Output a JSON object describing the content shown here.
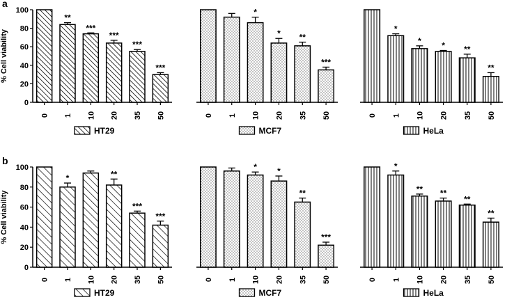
{
  "figure_title": "",
  "chart_data": [
    {
      "type": "bar",
      "panel": "a",
      "legend": "HT29",
      "pattern": "diagonal-dense",
      "show_yaxis": true,
      "ylabel": "% Cell viability",
      "ylim": [
        0,
        100
      ],
      "yticks": [
        0,
        20,
        40,
        60,
        80,
        100
      ],
      "categories": [
        "0",
        "1",
        "10",
        "20",
        "35",
        "50"
      ],
      "values": [
        100,
        84,
        74,
        64,
        55,
        30
      ],
      "errors": [
        0,
        2,
        1,
        3,
        2,
        2
      ],
      "significance": [
        "",
        "**",
        "***",
        "***",
        "***",
        "***"
      ]
    },
    {
      "type": "bar",
      "panel": "a",
      "legend": "MCF7",
      "pattern": "dots",
      "show_yaxis": false,
      "ylim": [
        0,
        100
      ],
      "categories": [
        "0",
        "1",
        "10",
        "20",
        "35",
        "50"
      ],
      "values": [
        100,
        92,
        86,
        64,
        61,
        35
      ],
      "errors": [
        0,
        4,
        6,
        5,
        4,
        3
      ],
      "significance": [
        "",
        "",
        "*",
        "*",
        "**",
        "***"
      ]
    },
    {
      "type": "bar",
      "panel": "a",
      "legend": "HeLa",
      "pattern": "vertical-lines",
      "show_yaxis": false,
      "ylim": [
        0,
        100
      ],
      "categories": [
        "0",
        "1",
        "10",
        "20",
        "35",
        "50"
      ],
      "values": [
        100,
        72,
        58,
        55,
        48,
        28
      ],
      "errors": [
        0,
        2,
        3,
        1,
        4,
        4
      ],
      "significance": [
        "",
        "*",
        "*",
        "*",
        "**",
        "**"
      ]
    },
    {
      "type": "bar",
      "panel": "b",
      "legend": "HT29",
      "pattern": "diagonal-sparse",
      "show_yaxis": true,
      "ylabel": "% Cell viability",
      "ylim": [
        0,
        100
      ],
      "yticks": [
        0,
        20,
        40,
        60,
        80,
        100
      ],
      "categories": [
        "0",
        "1",
        "10",
        "20",
        "35",
        "50"
      ],
      "values": [
        100,
        80,
        94,
        82,
        54,
        42
      ],
      "errors": [
        0,
        4,
        2,
        6,
        2,
        4
      ],
      "significance": [
        "",
        "*",
        "",
        "**",
        "***",
        "***"
      ]
    },
    {
      "type": "bar",
      "panel": "b",
      "legend": "MCF7",
      "pattern": "dots",
      "show_yaxis": false,
      "ylim": [
        0,
        100
      ],
      "categories": [
        "0",
        "1",
        "10",
        "20",
        "35",
        "50"
      ],
      "values": [
        100,
        96,
        92,
        86,
        65,
        22
      ],
      "errors": [
        0,
        3,
        3,
        5,
        4,
        3
      ],
      "significance": [
        "",
        "",
        "*",
        "*",
        "**",
        "***"
      ]
    },
    {
      "type": "bar",
      "panel": "b",
      "legend": "HeLa",
      "pattern": "vertical-lines",
      "show_yaxis": false,
      "ylim": [
        0,
        100
      ],
      "categories": [
        "0",
        "1",
        "10",
        "20",
        "35",
        "50"
      ],
      "values": [
        100,
        92,
        71,
        66,
        62,
        45
      ],
      "errors": [
        0,
        4,
        2,
        3,
        1,
        4
      ],
      "significance": [
        "",
        "*",
        "**",
        "**",
        "**",
        "**"
      ]
    }
  ]
}
